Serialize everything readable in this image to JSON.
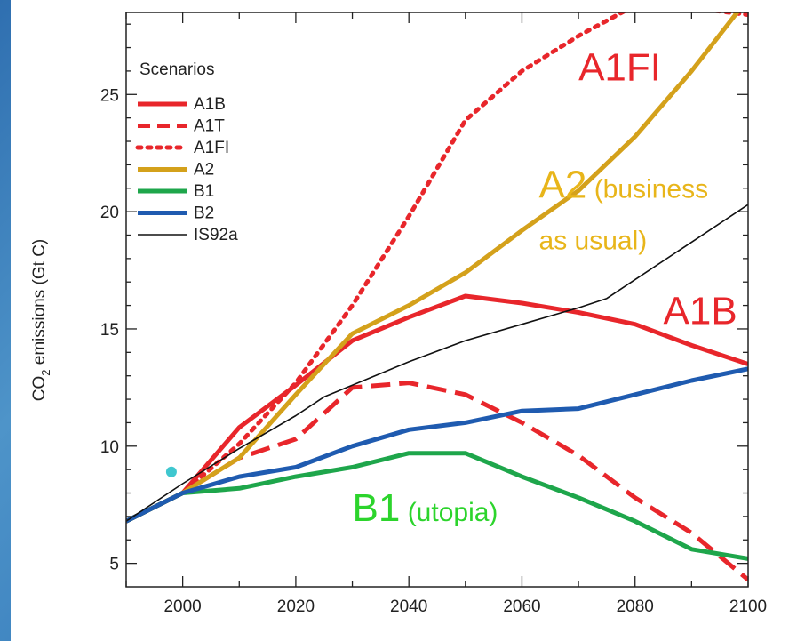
{
  "chart_data": {
    "type": "line",
    "ylabel_main": "CO",
    "ylabel_sub": "2",
    "ylabel_rest": " emissions (Gt C)",
    "xlim": [
      1990,
      2100
    ],
    "ylim": [
      4,
      28.5
    ],
    "x_ticks": [
      2000,
      2020,
      2040,
      2060,
      2080,
      2100
    ],
    "y_ticks": [
      5,
      10,
      15,
      20,
      25
    ],
    "legend_title": "Scenarios",
    "legend_position": "top-left",
    "series": [
      {
        "name": "A1B",
        "color": "#e8262b",
        "dash": "solid",
        "width": 5,
        "x": [
          1990,
          2000,
          2010,
          2020,
          2030,
          2040,
          2050,
          2060,
          2070,
          2080,
          2090,
          2100
        ],
        "y": [
          6.8,
          8.0,
          10.8,
          12.6,
          14.5,
          15.5,
          16.4,
          16.1,
          15.7,
          15.2,
          14.3,
          13.5
        ]
      },
      {
        "name": "A1T",
        "color": "#e8262b",
        "dash": "dashed",
        "width": 5,
        "x": [
          1990,
          2000,
          2010,
          2020,
          2030,
          2040,
          2050,
          2060,
          2070,
          2080,
          2090,
          2100
        ],
        "y": [
          6.8,
          8.0,
          9.5,
          10.3,
          12.5,
          12.7,
          12.2,
          11.0,
          9.6,
          7.8,
          6.3,
          4.3
        ]
      },
      {
        "name": "A1FI",
        "color": "#e8262b",
        "dash": "dotted",
        "width": 5,
        "x": [
          1990,
          2000,
          2010,
          2020,
          2030,
          2040,
          2050,
          2060,
          2070,
          2080,
          2090,
          2100
        ],
        "y": [
          6.8,
          8.0,
          10.1,
          12.7,
          16.0,
          19.8,
          23.9,
          26.0,
          27.5,
          28.8,
          28.7,
          28.4
        ]
      },
      {
        "name": "A2",
        "color": "#d4a11b",
        "dash": "solid",
        "width": 5,
        "x": [
          1990,
          2000,
          2010,
          2020,
          2030,
          2040,
          2050,
          2060,
          2070,
          2080,
          2090,
          2100
        ],
        "y": [
          6.8,
          8.0,
          9.5,
          12.2,
          14.8,
          16.0,
          17.4,
          19.2,
          20.9,
          23.2,
          26.0,
          29.1
        ]
      },
      {
        "name": "B1",
        "color": "#1ea64b",
        "dash": "solid",
        "width": 5,
        "x": [
          1990,
          2000,
          2010,
          2020,
          2030,
          2040,
          2050,
          2060,
          2070,
          2080,
          2090,
          2100
        ],
        "y": [
          6.8,
          8.0,
          8.2,
          8.7,
          9.1,
          9.7,
          9.7,
          8.7,
          7.8,
          6.8,
          5.6,
          5.2
        ]
      },
      {
        "name": "B2",
        "color": "#1f5bb0",
        "dash": "solid",
        "width": 5,
        "x": [
          1990,
          2000,
          2010,
          2020,
          2030,
          2040,
          2050,
          2060,
          2070,
          2080,
          2090,
          2100
        ],
        "y": [
          6.8,
          8.0,
          8.7,
          9.1,
          10.0,
          10.7,
          11.0,
          11.5,
          11.6,
          12.2,
          12.8,
          13.3
        ]
      },
      {
        "name": "IS92a",
        "color": "#111111",
        "dash": "solid",
        "width": 1.6,
        "x": [
          1990,
          2000,
          2010,
          2020,
          2025,
          2030,
          2040,
          2050,
          2060,
          2070,
          2075,
          2080,
          2090,
          2100
        ],
        "y": [
          6.8,
          8.4,
          9.9,
          11.3,
          12.1,
          12.6,
          13.6,
          14.5,
          15.2,
          15.9,
          16.3,
          17.1,
          18.7,
          20.3
        ]
      }
    ],
    "observed_point": {
      "x": 1998,
      "y": 8.9,
      "color": "#3fc7cf"
    },
    "annotations": [
      {
        "big": "A1FI",
        "small": "",
        "color": "#e8262b",
        "x": 2070,
        "y": 25.6
      },
      {
        "big": "A2",
        "small": " (business",
        "color": "#e8b51a",
        "x": 2063,
        "y": 20.6
      },
      {
        "big": "",
        "small": "as usual)",
        "color": "#e8b51a",
        "x": 2063,
        "y": 18.4
      },
      {
        "big": "A1B",
        "small": "",
        "color": "#e8262b",
        "x": 2085,
        "y": 15.2
      },
      {
        "big": "B1",
        "small": " (utopia)",
        "color": "#2cd42c",
        "x": 2030,
        "y": 6.8
      }
    ]
  }
}
